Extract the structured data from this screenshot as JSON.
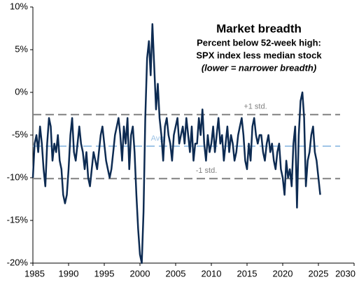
{
  "chart_data": {
    "type": "line",
    "title": "Market breadth",
    "subtitle": [
      "Percent below 52-week high:",
      "SPX index less median stock",
      "(lower = narrower breadth)"
    ],
    "x": [
      1985,
      1985.25,
      1985.5,
      1985.75,
      1986,
      1986.25,
      1986.5,
      1986.75,
      1987,
      1987.25,
      1987.5,
      1987.75,
      1988,
      1988.25,
      1988.5,
      1988.75,
      1989,
      1989.25,
      1989.5,
      1989.75,
      1990,
      1990.25,
      1990.5,
      1990.75,
      1991,
      1991.25,
      1991.5,
      1991.75,
      1992,
      1992.25,
      1992.5,
      1992.75,
      1993,
      1993.25,
      1993.5,
      1993.75,
      1994,
      1994.25,
      1994.5,
      1994.75,
      1995,
      1995.25,
      1995.5,
      1995.75,
      1996,
      1996.25,
      1996.5,
      1996.75,
      1997,
      1997.25,
      1997.5,
      1997.75,
      1998,
      1998.25,
      1998.5,
      1998.75,
      1999,
      1999.25,
      1999.5,
      1999.75,
      2000,
      2000.25,
      2000.5,
      2000.75,
      2001,
      2001.25,
      2001.5,
      2001.75,
      2002,
      2002.25,
      2002.5,
      2002.75,
      2003,
      2003.25,
      2003.5,
      2003.75,
      2004,
      2004.25,
      2004.5,
      2004.75,
      2005,
      2005.25,
      2005.5,
      2005.75,
      2006,
      2006.25,
      2006.5,
      2006.75,
      2007,
      2007.25,
      2007.5,
      2007.75,
      2008,
      2008.25,
      2008.5,
      2008.75,
      2009,
      2009.25,
      2009.5,
      2009.75,
      2010,
      2010.25,
      2010.5,
      2010.75,
      2011,
      2011.25,
      2011.5,
      2011.75,
      2012,
      2012.25,
      2012.5,
      2012.75,
      2013,
      2013.25,
      2013.5,
      2013.75,
      2014,
      2014.25,
      2014.5,
      2014.75,
      2015,
      2015.25,
      2015.5,
      2015.75,
      2016,
      2016.25,
      2016.5,
      2016.75,
      2017,
      2017.25,
      2017.5,
      2017.75,
      2018,
      2018.25,
      2018.5,
      2018.75,
      2019,
      2019.25,
      2019.5,
      2019.75,
      2020,
      2020.25,
      2020.5,
      2020.75,
      2021,
      2021.25,
      2021.5,
      2021.75,
      2022,
      2022.25,
      2022.5,
      2022.75,
      2023,
      2023.25,
      2023.5,
      2023.75,
      2024,
      2024.25,
      2024.5,
      2024.75,
      2025,
      2025.25
    ],
    "series": [
      {
        "name": "SPX index less median stock",
        "color": "#0d2b52",
        "values": [
          -10,
          -6,
          -5,
          -7,
          -4,
          -6,
          -9,
          -11,
          -6,
          -3,
          -4,
          -8,
          -6,
          -7,
          -5,
          -8,
          -9,
          -12,
          -13,
          -12,
          -9,
          -5,
          -3,
          -7,
          -8,
          -6,
          -4,
          -6,
          -7,
          -9,
          -7,
          -10,
          -11,
          -9,
          -7,
          -8,
          -9,
          -7,
          -5,
          -4,
          -6,
          -8,
          -9,
          -10,
          -9,
          -7,
          -5,
          -4,
          -3,
          -5,
          -8,
          -4,
          -6,
          -3,
          -9,
          -5,
          -4,
          -7,
          -12,
          -16,
          -19,
          -20,
          -14,
          -3,
          4,
          6,
          2,
          8,
          3,
          -2,
          1,
          -3,
          -5,
          -8,
          -4,
          -3,
          -5,
          -6,
          -8,
          -5,
          -4,
          -3,
          -6,
          -5,
          -4,
          -6,
          -3,
          -5,
          -7,
          -4,
          -8,
          -6,
          -6,
          -3,
          -5,
          -2,
          -6,
          -8,
          -5,
          -7,
          -6,
          -4,
          -7,
          -5,
          -3,
          -6,
          -5,
          -8,
          -6,
          -4,
          -7,
          -5,
          -6,
          -8,
          -7,
          -5,
          -4,
          -3,
          -5,
          -8,
          -9,
          -6,
          -8,
          -4,
          -3,
          -5,
          -6,
          -5,
          -5,
          -7,
          -8,
          -6,
          -5,
          -7,
          -6,
          -8,
          -9,
          -7,
          -6,
          -9,
          -10,
          -12,
          -8,
          -10,
          -9,
          -11,
          -6,
          -4,
          -13.5,
          -5,
          -1,
          0,
          -3,
          -11,
          -8,
          -7,
          -5,
          -4,
          -7,
          -8,
          -10,
          -12
        ]
      }
    ],
    "reference_lines": [
      {
        "label": "+1 std.",
        "value": -2.6,
        "color": "#808080"
      },
      {
        "label": "Avg",
        "value": -6.3,
        "color": "#9dc3e6"
      },
      {
        "label": "-1 std.",
        "value": -10.1,
        "color": "#808080"
      }
    ],
    "xlim": [
      1985,
      2030
    ],
    "xticks": [
      1985,
      1990,
      1995,
      2000,
      2005,
      2010,
      2015,
      2020,
      2025,
      2030
    ],
    "ylim": [
      -20,
      10
    ],
    "yticks": [
      {
        "value": -20,
        "label": "-20%"
      },
      {
        "value": -15,
        "label": "-15%"
      },
      {
        "value": -10,
        "label": "-10%"
      },
      {
        "value": -5,
        "label": "-5%"
      },
      {
        "value": 0,
        "label": "0%"
      },
      {
        "value": 5,
        "label": "5%"
      },
      {
        "value": 10,
        "label": "10%"
      }
    ]
  }
}
